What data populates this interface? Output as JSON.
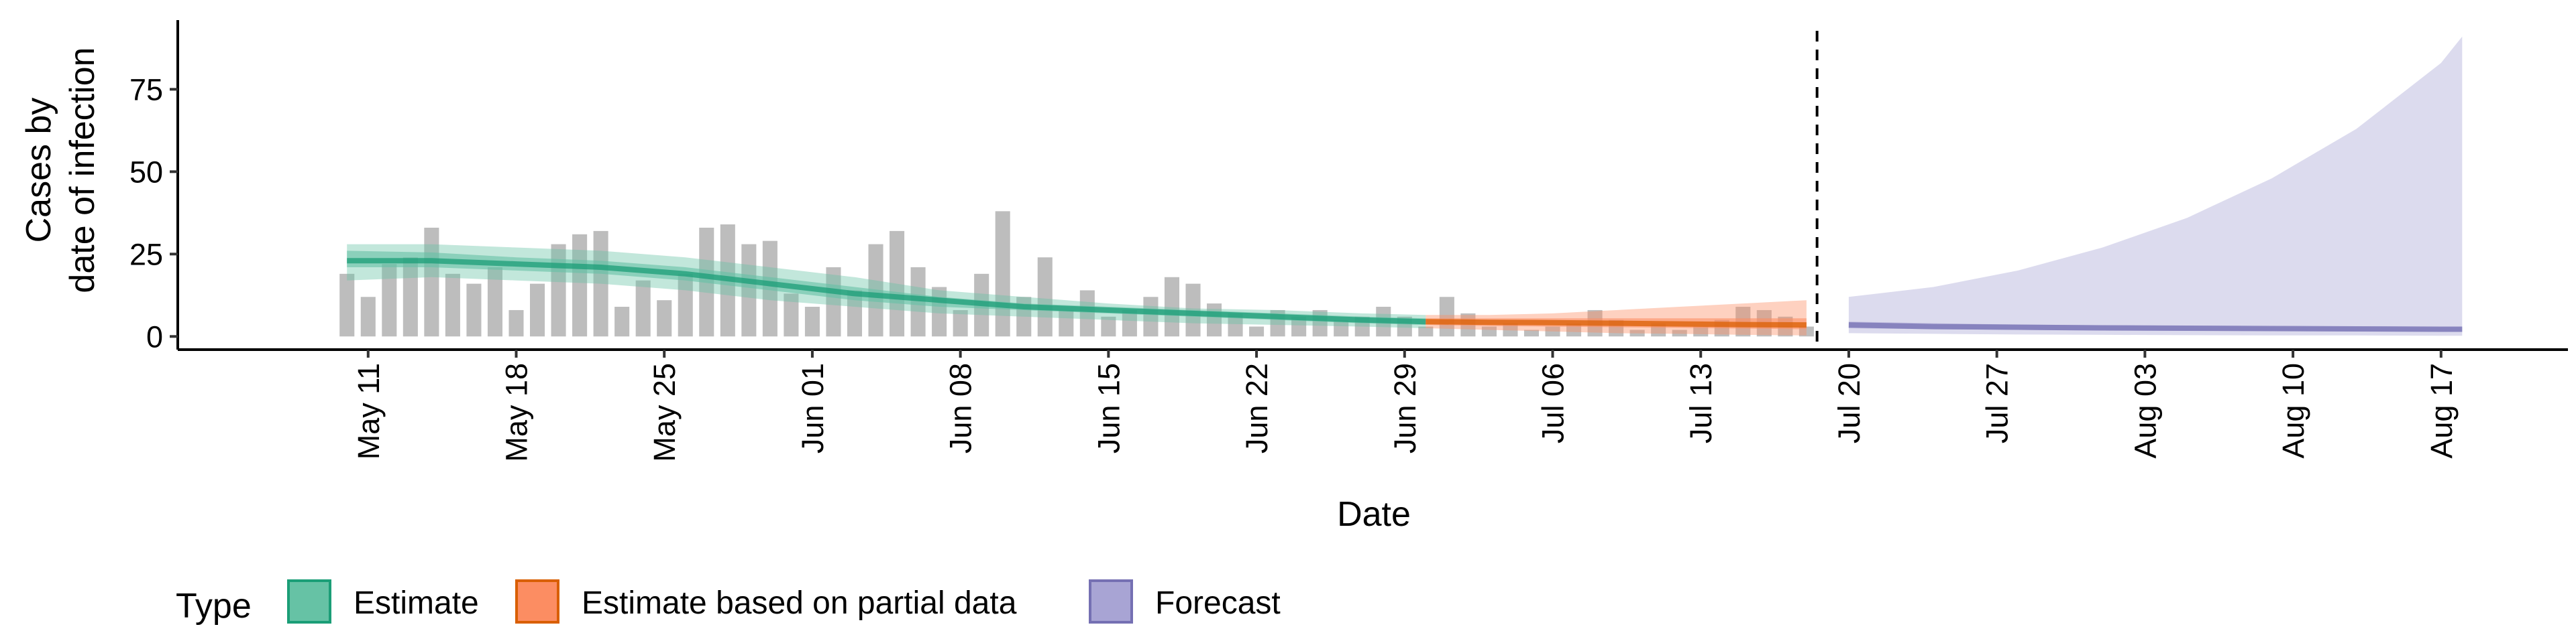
{
  "chart_data": {
    "type": "bar",
    "xlabel": "Date",
    "ylabel_lines": [
      "Cases by",
      "date of infection"
    ],
    "y_ticks": [
      0,
      25,
      50,
      75
    ],
    "ylim": [
      -4,
      96
    ],
    "x_ticks": [
      {
        "date": "2020-05-11",
        "label": "May 11"
      },
      {
        "date": "2020-05-18",
        "label": "May 18"
      },
      {
        "date": "2020-05-25",
        "label": "May 25"
      },
      {
        "date": "2020-06-01",
        "label": "Jun 01"
      },
      {
        "date": "2020-06-08",
        "label": "Jun 08"
      },
      {
        "date": "2020-06-15",
        "label": "Jun 15"
      },
      {
        "date": "2020-06-22",
        "label": "Jun 22"
      },
      {
        "date": "2020-06-29",
        "label": "Jun 29"
      },
      {
        "date": "2020-07-06",
        "label": "Jul 06"
      },
      {
        "date": "2020-07-13",
        "label": "Jul 13"
      },
      {
        "date": "2020-07-20",
        "label": "Jul 20"
      },
      {
        "date": "2020-07-27",
        "label": "Jul 27"
      },
      {
        "date": "2020-08-03",
        "label": "Aug 03"
      },
      {
        "date": "2020-08-10",
        "label": "Aug 10"
      },
      {
        "date": "2020-08-17",
        "label": "Aug 17"
      }
    ],
    "xlim": [
      "2020-05-02",
      "2020-08-23"
    ],
    "forecast_start": "2020-07-19",
    "grid": false,
    "legend": {
      "position": "bottom",
      "title": "Type",
      "entries": [
        {
          "name": "Estimate",
          "fill": "#66c2a5",
          "stroke": "#1b9e77"
        },
        {
          "name": "Estimate based on partial data",
          "fill": "#fc8d62",
          "stroke": "#d95f02"
        },
        {
          "name": "Forecast",
          "fill": "#a8a4d4",
          "stroke": "#7570b3"
        }
      ]
    },
    "bars": {
      "color": "#bdbdbd",
      "start_date": "2020-05-10",
      "values": [
        19,
        12,
        22,
        24,
        33,
        19,
        16,
        21,
        8,
        16,
        28,
        31,
        32,
        9,
        17,
        11,
        19,
        33,
        34,
        28,
        29,
        13,
        9,
        21,
        14,
        28,
        32,
        21,
        15,
        8,
        19,
        38,
        12,
        24,
        8,
        14,
        6,
        8,
        12,
        18,
        16,
        10,
        7,
        3,
        8,
        6,
        8,
        5,
        6,
        9,
        6,
        3,
        12,
        7,
        3,
        4,
        2,
        3,
        4,
        8,
        5,
        2,
        4,
        2,
        3,
        5,
        9,
        8,
        6,
        3
      ]
    },
    "series": [
      {
        "name": "Estimate",
        "color": "#1b9e77",
        "dates": [
          "2020-05-10",
          "2020-05-14",
          "2020-05-18",
          "2020-05-22",
          "2020-05-26",
          "2020-05-30",
          "2020-06-03",
          "2020-06-07",
          "2020-06-11",
          "2020-06-15",
          "2020-06-19",
          "2020-06-23",
          "2020-06-27",
          "2020-06-30"
        ],
        "median": [
          23,
          23,
          22,
          21,
          19,
          16,
          13,
          11,
          9,
          8,
          7,
          6,
          5,
          4.5
        ],
        "inner": [
          [
            21,
            26
          ],
          [
            21,
            25.5
          ],
          [
            20,
            24
          ],
          [
            19,
            23
          ],
          [
            17,
            21
          ],
          [
            14,
            18
          ],
          [
            11,
            15
          ],
          [
            9,
            12
          ],
          [
            8,
            10
          ],
          [
            7,
            9
          ],
          [
            6,
            8
          ],
          [
            5,
            7
          ],
          [
            4,
            6
          ],
          [
            3.5,
            5.5
          ]
        ],
        "outer": [
          [
            17,
            28
          ],
          [
            18,
            28
          ],
          [
            17,
            27
          ],
          [
            16,
            26
          ],
          [
            14,
            24
          ],
          [
            11,
            21
          ],
          [
            9,
            18
          ],
          [
            7,
            14
          ],
          [
            6,
            12
          ],
          [
            5,
            10
          ],
          [
            4,
            8.5
          ],
          [
            3.5,
            8
          ],
          [
            3,
            7
          ],
          [
            2.5,
            6.5
          ]
        ]
      },
      {
        "name": "Estimate based on partial data",
        "color": "#d95f02",
        "dates": [
          "2020-06-30",
          "2020-07-03",
          "2020-07-06",
          "2020-07-09",
          "2020-07-12",
          "2020-07-15",
          "2020-07-18"
        ],
        "median": [
          4.5,
          4.3,
          4.2,
          4.0,
          3.8,
          3.6,
          3.5
        ],
        "inner": [
          [
            3.5,
            5.5
          ],
          [
            3.2,
            5.5
          ],
          [
            3,
            5.5
          ],
          [
            2.8,
            5.5
          ],
          [
            2.6,
            5.5
          ],
          [
            2.4,
            5.5
          ],
          [
            2.2,
            5.5
          ]
        ],
        "outer": [
          [
            2.5,
            6.5
          ],
          [
            2,
            6.5
          ],
          [
            1.5,
            7
          ],
          [
            1,
            8
          ],
          [
            0.8,
            9
          ],
          [
            0.5,
            10
          ],
          [
            0.3,
            11
          ]
        ]
      },
      {
        "name": "Forecast",
        "color": "#7570b3",
        "dates": [
          "2020-07-20",
          "2020-07-24",
          "2020-07-28",
          "2020-08-01",
          "2020-08-05",
          "2020-08-09",
          "2020-08-13",
          "2020-08-17",
          "2020-08-18"
        ],
        "median": [
          3.5,
          3,
          2.8,
          2.6,
          2.5,
          2.4,
          2.3,
          2.2,
          2.2
        ],
        "inner": [
          [
            2.5,
            4.5
          ],
          [
            2.2,
            4
          ],
          [
            2,
            3.6
          ],
          [
            1.8,
            3.4
          ],
          [
            1.7,
            3.2
          ],
          [
            1.6,
            3
          ],
          [
            1.5,
            2.9
          ],
          [
            1.4,
            2.8
          ],
          [
            1.4,
            2.8
          ]
        ],
        "outer": [
          [
            1,
            12
          ],
          [
            0.8,
            15
          ],
          [
            0.6,
            20
          ],
          [
            0.5,
            27
          ],
          [
            0.4,
            36
          ],
          [
            0.3,
            48
          ],
          [
            0.3,
            63
          ],
          [
            0.2,
            83
          ],
          [
            0.2,
            91
          ]
        ]
      }
    ]
  }
}
